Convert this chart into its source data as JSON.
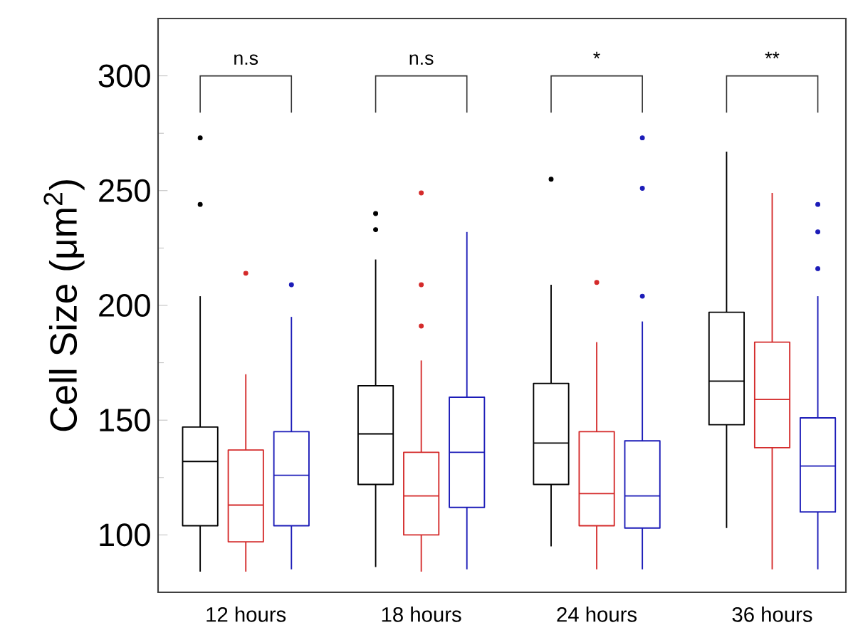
{
  "chart_data": {
    "type": "box",
    "ylabel": "Cell Size (μm$^{2}$)",
    "categories": [
      "12 hours",
      "18 hours",
      "24 hours",
      "36 hours"
    ],
    "ylim": [
      75,
      325
    ],
    "yticks": [
      100,
      150,
      200,
      250,
      300
    ],
    "series": [
      {
        "color": "#000000",
        "boxes": [
          {
            "low": 84,
            "q1": 104,
            "median": 132,
            "q3": 147,
            "high": 204,
            "outliers": [
              273,
              244
            ]
          },
          {
            "low": 86,
            "q1": 122,
            "median": 144,
            "q3": 165,
            "high": 220,
            "outliers": [
              240,
              233
            ]
          },
          {
            "low": 95,
            "q1": 122,
            "median": 140,
            "q3": 166,
            "high": 209,
            "outliers": [
              255
            ]
          },
          {
            "low": 103,
            "q1": 148,
            "median": 167,
            "q3": 197,
            "high": 267
          }
        ]
      },
      {
        "color": "#d42a2a",
        "boxes": [
          {
            "low": 84,
            "q1": 97,
            "median": 113,
            "q3": 137,
            "high": 170,
            "outliers": [
              214
            ]
          },
          {
            "low": 84,
            "q1": 100,
            "median": 117,
            "q3": 136,
            "high": 176,
            "outliers": [
              249,
              209,
              191
            ]
          },
          {
            "low": 85,
            "q1": 104,
            "median": 118,
            "q3": 145,
            "high": 184,
            "outliers": [
              210
            ]
          },
          {
            "low": 85,
            "q1": 138,
            "median": 159,
            "q3": 184,
            "high": 249
          }
        ]
      },
      {
        "color": "#1c1cb8",
        "boxes": [
          {
            "low": 85,
            "q1": 104,
            "median": 126,
            "q3": 145,
            "high": 195,
            "outliers": [
              209
            ]
          },
          {
            "low": 85,
            "q1": 112,
            "median": 136,
            "q3": 160,
            "high": 232
          },
          {
            "low": 85,
            "q1": 103,
            "median": 117,
            "q3": 141,
            "high": 193,
            "outliers": [
              273,
              251,
              204
            ]
          },
          {
            "low": 85,
            "q1": 110,
            "median": 130,
            "q3": 151,
            "high": 204,
            "outliers": [
              244,
              232,
              216
            ]
          }
        ]
      }
    ],
    "annotations": [
      "n.s",
      "n.s",
      "*",
      "**"
    ]
  }
}
